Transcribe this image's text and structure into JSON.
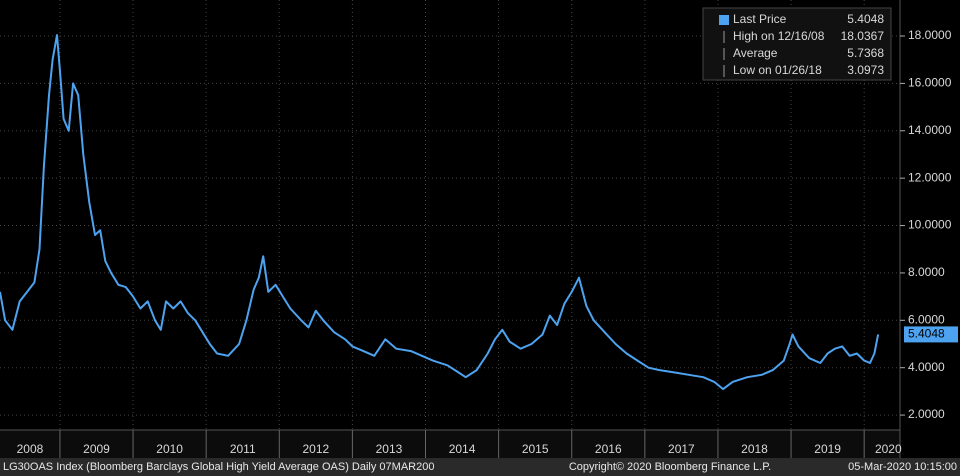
{
  "chart_data": {
    "type": "line",
    "series": [
      {
        "name": "Last Price",
        "color": "#4da3f0",
        "x": [
          2008.18,
          2008.25,
          2008.35,
          2008.45,
          2008.55,
          2008.65,
          2008.72,
          2008.78,
          2008.85,
          2008.9,
          2008.96,
          2009.0,
          2009.05,
          2009.12,
          2009.18,
          2009.25,
          2009.32,
          2009.4,
          2009.48,
          2009.55,
          2009.62,
          2009.7,
          2009.8,
          2009.9,
          2010.0,
          2010.1,
          2010.2,
          2010.3,
          2010.38,
          2010.45,
          2010.55,
          2010.65,
          2010.75,
          2010.85,
          2010.95,
          2011.05,
          2011.15,
          2011.3,
          2011.45,
          2011.55,
          2011.65,
          2011.72,
          2011.78,
          2011.85,
          2011.95,
          2012.05,
          2012.15,
          2012.3,
          2012.4,
          2012.5,
          2012.6,
          2012.75,
          2012.9,
          2013.0,
          2013.15,
          2013.3,
          2013.45,
          2013.6,
          2013.8,
          2013.95,
          2014.1,
          2014.3,
          2014.45,
          2014.55,
          2014.7,
          2014.85,
          2014.95,
          2015.05,
          2015.15,
          2015.3,
          2015.45,
          2015.6,
          2015.7,
          2015.8,
          2015.9,
          2016.0,
          2016.1,
          2016.2,
          2016.3,
          2016.45,
          2016.6,
          2016.75,
          2016.9,
          2017.05,
          2017.2,
          2017.4,
          2017.6,
          2017.8,
          2017.95,
          2018.07,
          2018.2,
          2018.4,
          2018.6,
          2018.75,
          2018.9,
          2018.98,
          2019.02,
          2019.1,
          2019.25,
          2019.4,
          2019.5,
          2019.6,
          2019.7,
          2019.8,
          2019.9,
          2020.0,
          2020.08,
          2020.14,
          2020.19
        ],
        "values": [
          7.2,
          6.0,
          5.6,
          6.8,
          7.2,
          7.6,
          9.0,
          12.5,
          15.5,
          17.0,
          18.0367,
          16.5,
          14.5,
          14.0,
          16.0,
          15.5,
          13.0,
          11.0,
          9.6,
          9.8,
          8.5,
          8.0,
          7.5,
          7.4,
          7.0,
          6.5,
          6.8,
          6.0,
          5.6,
          6.8,
          6.5,
          6.8,
          6.3,
          6.0,
          5.5,
          5.0,
          4.6,
          4.5,
          5.0,
          6.0,
          7.3,
          7.8,
          8.7,
          7.2,
          7.5,
          7.0,
          6.5,
          6.0,
          5.7,
          6.4,
          6.0,
          5.5,
          5.2,
          4.9,
          4.7,
          4.5,
          5.2,
          4.8,
          4.7,
          4.5,
          4.3,
          4.1,
          3.8,
          3.6,
          3.9,
          4.6,
          5.2,
          5.6,
          5.1,
          4.8,
          5.0,
          5.4,
          6.2,
          5.8,
          6.7,
          7.2,
          7.8,
          6.6,
          6.0,
          5.5,
          5.0,
          4.6,
          4.3,
          4.0,
          3.9,
          3.8,
          3.7,
          3.6,
          3.4,
          3.0973,
          3.4,
          3.6,
          3.7,
          3.9,
          4.3,
          5.0,
          5.4,
          4.9,
          4.4,
          4.2,
          4.6,
          4.8,
          4.9,
          4.5,
          4.6,
          4.3,
          4.2,
          4.6,
          5.4048
        ]
      }
    ],
    "legend": [
      {
        "label": "Last Price",
        "value": 5.4048
      },
      {
        "label": "High on 12/16/08",
        "value": 18.0367
      },
      {
        "label": "Average",
        "value": 5.7368
      },
      {
        "label": "Low on 01/26/18",
        "value": 3.0973
      }
    ],
    "xlim": [
      2008.18,
      2020.49
    ],
    "xticks": [
      {
        "value": 2008.59,
        "label": "2008"
      },
      {
        "value": 2009.5,
        "label": "2009"
      },
      {
        "value": 2010.5,
        "label": "2010"
      },
      {
        "value": 2011.5,
        "label": "2011"
      },
      {
        "value": 2012.5,
        "label": "2012"
      },
      {
        "value": 2013.5,
        "label": "2013"
      },
      {
        "value": 2014.5,
        "label": "2014"
      },
      {
        "value": 2015.5,
        "label": "2015"
      },
      {
        "value": 2016.5,
        "label": "2016"
      },
      {
        "value": 2017.5,
        "label": "2017"
      },
      {
        "value": 2018.5,
        "label": "2018"
      },
      {
        "value": 2019.5,
        "label": "2019"
      },
      {
        "value": 2020.33,
        "label": "2020"
      }
    ],
    "xgrid": [
      2009,
      2010,
      2011,
      2012,
      2013,
      2014,
      2015,
      2016,
      2017,
      2018,
      2019,
      2020
    ],
    "ylim": [
      1.37,
      19.52
    ],
    "yticks": [
      {
        "value": 2,
        "label": "2.0000"
      },
      {
        "value": 4,
        "label": "4.0000"
      },
      {
        "value": 6,
        "label": "6.0000"
      },
      {
        "value": 8,
        "label": "8.0000"
      },
      {
        "value": 10,
        "label": "10.0000"
      },
      {
        "value": 12,
        "label": "12.0000"
      },
      {
        "value": 14,
        "label": "14.0000"
      },
      {
        "value": 16,
        "label": "16.0000"
      },
      {
        "value": 18,
        "label": "18.0000"
      }
    ],
    "grid": true,
    "footer": {
      "left": "LG30OAS Index (Bloomberg Barclays Global High Yield Average OAS)  Daily 07MAR200",
      "center": "Copyright© 2020 Bloomberg Finance L.P.",
      "right": "05-Mar-2020 10:15:00"
    }
  }
}
